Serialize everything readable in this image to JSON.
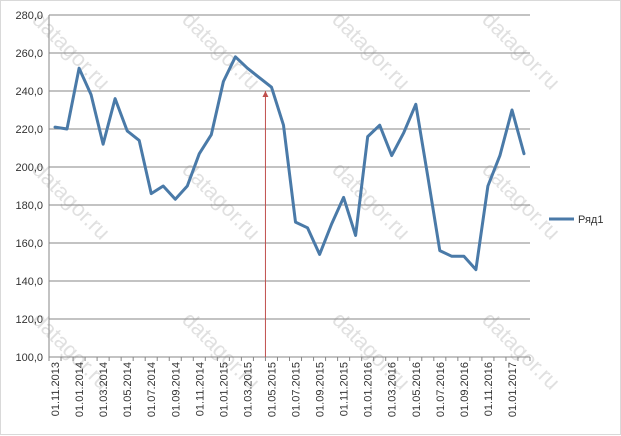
{
  "chart_data": {
    "type": "line",
    "ylim": [
      100,
      280
    ],
    "yticks": [
      "100,0",
      "120,0",
      "140,0",
      "160,0",
      "180,0",
      "200,0",
      "220,0",
      "240,0",
      "260,0",
      "280,0"
    ],
    "ytick_values": [
      100,
      120,
      140,
      160,
      180,
      200,
      220,
      240,
      260,
      280
    ],
    "x_tick_labels": [
      "01.11.2013",
      "01.01.2014",
      "01.03.2014",
      "01.05.2014",
      "01.07.2014",
      "01.09.2014",
      "01.11.2014",
      "01.01.2015",
      "01.03.2015",
      "01.05.2015",
      "01.07.2015",
      "01.09.2015",
      "01.11.2015",
      "01.01.2016",
      "01.03.2016",
      "01.05.2016",
      "01.07.2016",
      "01.09.2016",
      "01.11.2016",
      "01.01.2017"
    ],
    "grid": true,
    "legend_position": "right",
    "series": [
      {
        "name": "Ряд1",
        "color": "#4a7aa8",
        "values": [
          221,
          220,
          252,
          238,
          212,
          236,
          219,
          214,
          186,
          190,
          183,
          190,
          207,
          217,
          245,
          258,
          252,
          247,
          242,
          222,
          171,
          168,
          154,
          170,
          184,
          164,
          216,
          222,
          206,
          218,
          233,
          195,
          156,
          153,
          153,
          146,
          190,
          206,
          230,
          207
        ]
      }
    ],
    "annotation": {
      "type": "vertical-marker",
      "index": 17.5,
      "from": 100,
      "to": 240,
      "color": "#c0504d"
    }
  },
  "watermark": {
    "text": "datagor.ru"
  }
}
